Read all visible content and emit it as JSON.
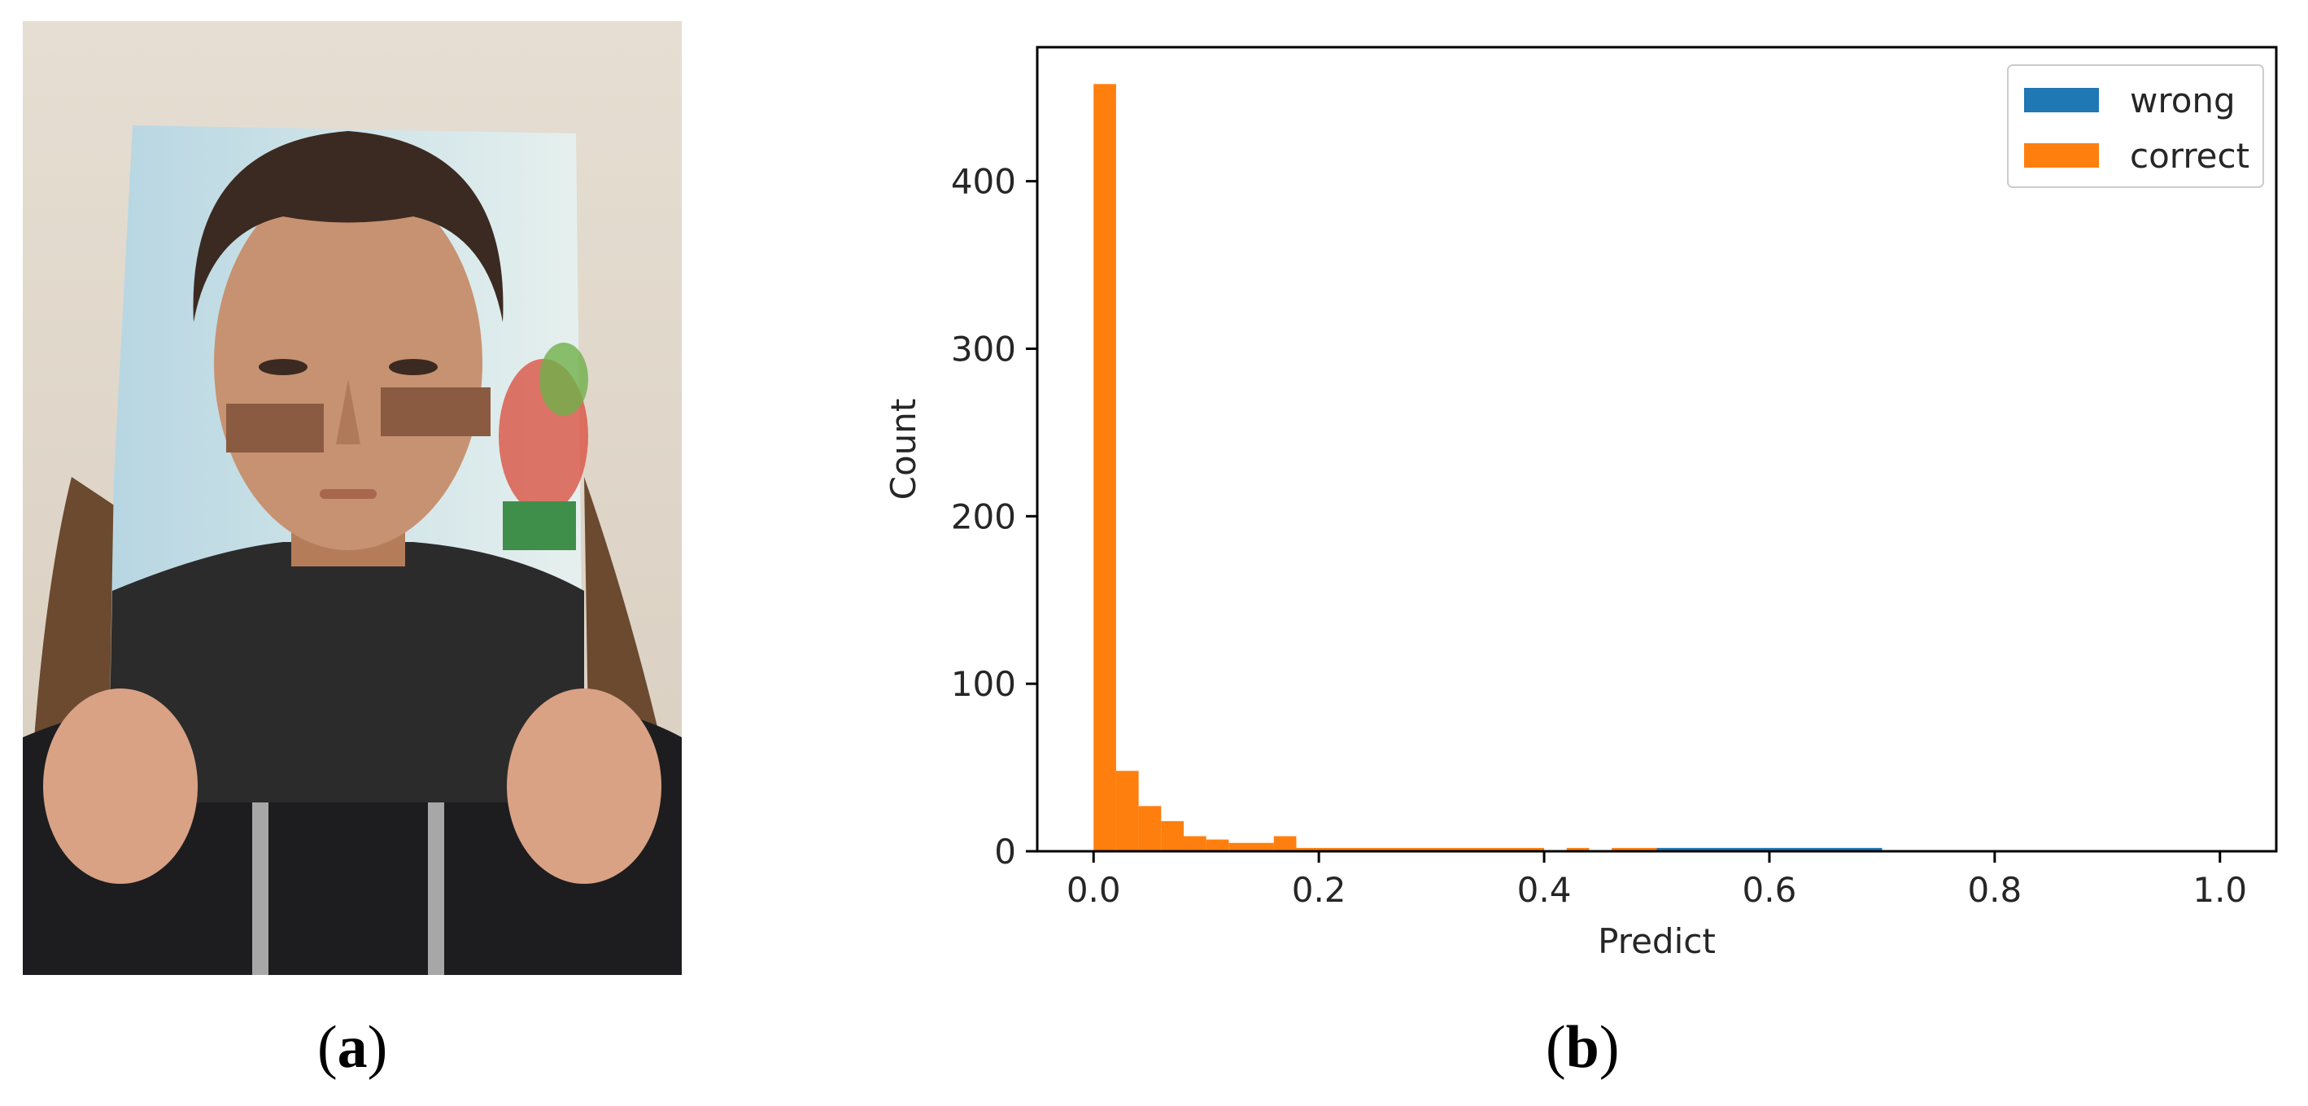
{
  "panels": {
    "a": {
      "label": "a"
    },
    "b": {
      "label": "b"
    }
  },
  "colors": {
    "wrong": "#1f77b4",
    "correct": "#ff7f0e"
  },
  "chart_data": {
    "type": "bar",
    "subtype": "histogram",
    "xlabel": "Predict",
    "ylabel": "Count",
    "xlim": [
      -0.05,
      1.05
    ],
    "ylim": [
      0,
      480
    ],
    "xticks": [
      0.0,
      0.2,
      0.4,
      0.6,
      0.8,
      1.0
    ],
    "xtick_labels": [
      "0.0",
      "0.2",
      "0.4",
      "0.6",
      "0.8",
      "1.0"
    ],
    "yticks": [
      0,
      100,
      200,
      300,
      400
    ],
    "ytick_labels": [
      "0",
      "100",
      "200",
      "300",
      "400"
    ],
    "legend_position": "top-right",
    "grid": false,
    "series": [
      {
        "name": "wrong",
        "color": "#1f77b4",
        "bins": [
          {
            "x0": 0.5,
            "x1": 0.7,
            "count": 2
          }
        ]
      },
      {
        "name": "correct",
        "color": "#ff7f0e",
        "bins": [
          {
            "x0": 0.0,
            "x1": 0.02,
            "count": 458
          },
          {
            "x0": 0.02,
            "x1": 0.04,
            "count": 48
          },
          {
            "x0": 0.04,
            "x1": 0.06,
            "count": 27
          },
          {
            "x0": 0.06,
            "x1": 0.08,
            "count": 18
          },
          {
            "x0": 0.08,
            "x1": 0.1,
            "count": 9
          },
          {
            "x0": 0.1,
            "x1": 0.12,
            "count": 7
          },
          {
            "x0": 0.12,
            "x1": 0.16,
            "count": 5
          },
          {
            "x0": 0.16,
            "x1": 0.18,
            "count": 9
          },
          {
            "x0": 0.18,
            "x1": 0.4,
            "count": 2
          },
          {
            "x0": 0.42,
            "x1": 0.44,
            "count": 2
          },
          {
            "x0": 0.46,
            "x1": 0.5,
            "count": 2
          }
        ]
      }
    ]
  }
}
